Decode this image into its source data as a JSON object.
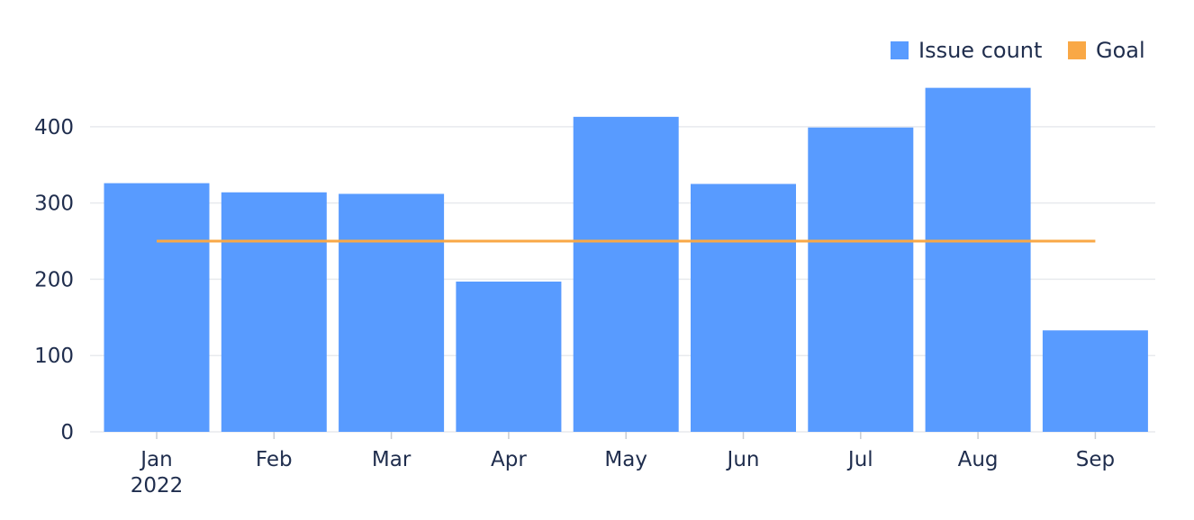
{
  "chart_data": {
    "type": "bar",
    "categories": [
      "Jan",
      "Feb",
      "Mar",
      "Apr",
      "May",
      "Jun",
      "Jul",
      "Aug",
      "Sep"
    ],
    "year_label": "2022",
    "series": [
      {
        "name": "Issue count",
        "type": "bar",
        "color": "#589bff",
        "values": [
          326,
          314,
          312,
          197,
          413,
          325,
          399,
          451,
          133
        ]
      },
      {
        "name": "Goal",
        "type": "line",
        "color": "#f9a846",
        "values": [
          250,
          250,
          250,
          250,
          250,
          250,
          250,
          250,
          250
        ]
      }
    ],
    "y_ticks": [
      0,
      100,
      200,
      300,
      400
    ],
    "ylim": [
      0,
      460
    ],
    "grid": true,
    "legend_position": "top-right"
  }
}
